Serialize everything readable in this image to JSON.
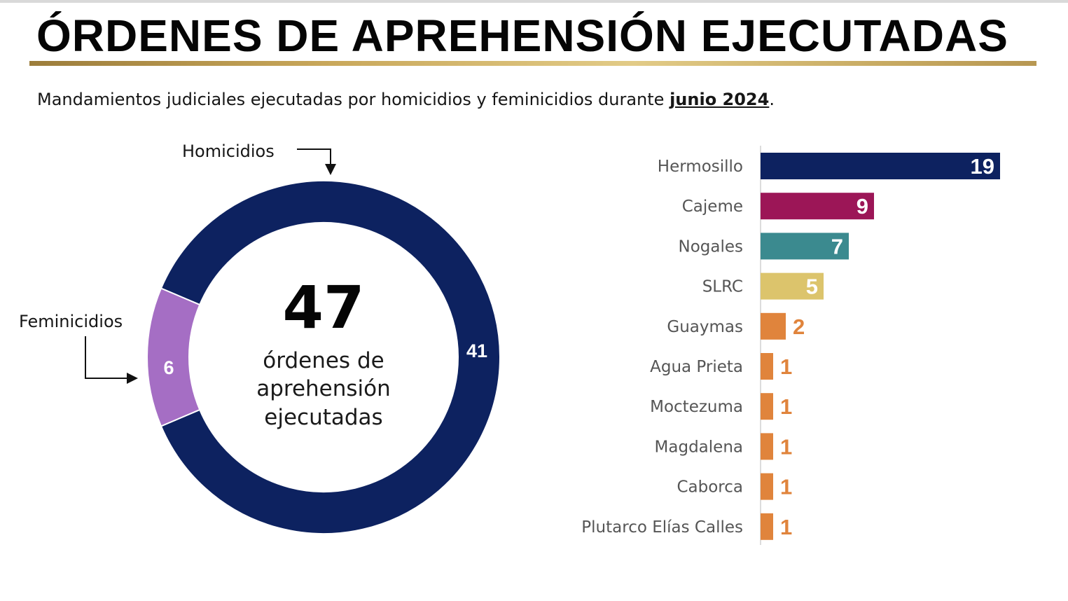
{
  "header": {
    "title": "ÓRDENES DE APREHENSIÓN EJECUTADAS",
    "subtitle_prefix": "Mandamientos judiciales ejecutadas por homicidios y feminicidios durante ",
    "subtitle_period": "junio 2024",
    "subtitle_suffix": "."
  },
  "colors": {
    "navy": "#0d2260",
    "purple": "#a56ec4",
    "magenta": "#9c1657",
    "teal": "#3b8a8f",
    "gold": "#dcc46c",
    "orange": "#e0843c"
  },
  "chart_data": [
    {
      "type": "pie",
      "variant": "donut",
      "center_total": "47",
      "center_text": "órdenes de aprehensión ejecutadas",
      "slices": [
        {
          "label": "Homicidios",
          "value": 41,
          "color": "#0d2260"
        },
        {
          "label": "Feminicidios",
          "value": 6,
          "color": "#a56ec4"
        }
      ]
    },
    {
      "type": "bar",
      "orientation": "horizontal",
      "categories": [
        "Hermosillo",
        "Cajeme",
        "Nogales",
        "SLRC",
        "Guaymas",
        "Agua Prieta",
        "Moctezuma",
        "Magdalena",
        "Caborca",
        "Plutarco Elías Calles"
      ],
      "values": [
        19,
        9,
        7,
        5,
        2,
        1,
        1,
        1,
        1,
        1
      ],
      "colors": [
        "#0d2260",
        "#9c1657",
        "#3b8a8f",
        "#dcc46c",
        "#e0843c",
        "#e0843c",
        "#e0843c",
        "#e0843c",
        "#e0843c",
        "#e0843c"
      ],
      "xlim": [
        0,
        19
      ],
      "data_labels": [
        "19",
        "9",
        "7",
        "5",
        "2",
        "1",
        "1",
        "1",
        "1",
        "1"
      ],
      "grid": false,
      "legend": "none"
    }
  ]
}
